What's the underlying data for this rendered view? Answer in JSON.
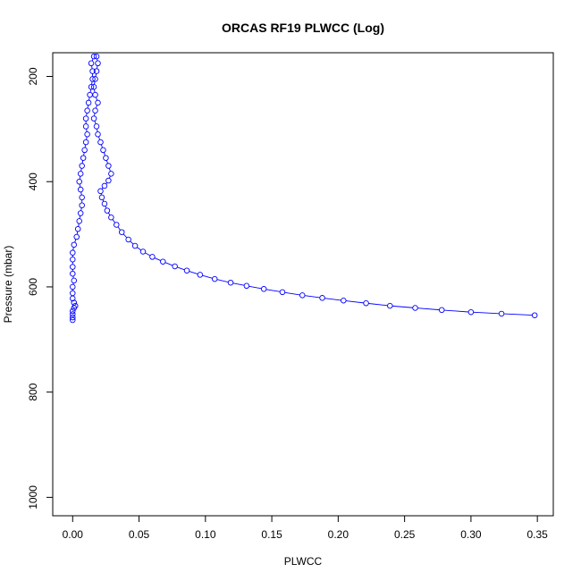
{
  "chart_data": {
    "type": "scatter",
    "title": "ORCAS RF19 PLWCC (Log)",
    "xlabel": "PLWCC",
    "ylabel": "Pressure (mbar)",
    "xlim": [
      -0.015,
      0.362
    ],
    "ylim": [
      1035,
      155
    ],
    "y_reversed": true,
    "x_ticks": [
      "0.00",
      "0.05",
      "0.10",
      "0.15",
      "0.20",
      "0.25",
      "0.30",
      "0.35"
    ],
    "y_ticks": [
      "200",
      "400",
      "600",
      "800",
      "1000"
    ],
    "grid": false,
    "legend": "none",
    "marker": "open-circle",
    "line": true,
    "colors": {
      "series": "#0000ff",
      "axis": "#000000"
    },
    "series": [
      {
        "values": [
          {
            "x": 0.0,
            "y": 663
          },
          {
            "x": 0.0,
            "y": 658
          },
          {
            "x": 0.0,
            "y": 652
          },
          {
            "x": 0.0,
            "y": 646
          },
          {
            "x": 0.001,
            "y": 640
          },
          {
            "x": 0.002,
            "y": 636
          },
          {
            "x": 0.001,
            "y": 630
          },
          {
            "x": 0.0,
            "y": 622
          },
          {
            "x": 0.0,
            "y": 612
          },
          {
            "x": 0.0,
            "y": 600
          },
          {
            "x": 0.001,
            "y": 588
          },
          {
            "x": 0.0,
            "y": 575
          },
          {
            "x": 0.0,
            "y": 562
          },
          {
            "x": 0.0,
            "y": 548
          },
          {
            "x": 0.0,
            "y": 535
          },
          {
            "x": 0.001,
            "y": 520
          },
          {
            "x": 0.003,
            "y": 505
          },
          {
            "x": 0.004,
            "y": 490
          },
          {
            "x": 0.005,
            "y": 475
          },
          {
            "x": 0.006,
            "y": 460
          },
          {
            "x": 0.007,
            "y": 445
          },
          {
            "x": 0.007,
            "y": 430
          },
          {
            "x": 0.006,
            "y": 415
          },
          {
            "x": 0.005,
            "y": 400
          },
          {
            "x": 0.006,
            "y": 385
          },
          {
            "x": 0.007,
            "y": 370
          },
          {
            "x": 0.008,
            "y": 355
          },
          {
            "x": 0.009,
            "y": 340
          },
          {
            "x": 0.01,
            "y": 325
          },
          {
            "x": 0.011,
            "y": 310
          },
          {
            "x": 0.01,
            "y": 295
          },
          {
            "x": 0.01,
            "y": 280
          },
          {
            "x": 0.011,
            "y": 265
          },
          {
            "x": 0.012,
            "y": 250
          },
          {
            "x": 0.013,
            "y": 235
          },
          {
            "x": 0.014,
            "y": 220
          },
          {
            "x": 0.015,
            "y": 205
          },
          {
            "x": 0.015,
            "y": 190
          },
          {
            "x": 0.014,
            "y": 175
          },
          {
            "x": 0.016,
            "y": 162
          },
          {
            "x": 0.018,
            "y": 162
          },
          {
            "x": 0.019,
            "y": 175
          },
          {
            "x": 0.018,
            "y": 190
          },
          {
            "x": 0.017,
            "y": 205
          },
          {
            "x": 0.016,
            "y": 220
          },
          {
            "x": 0.017,
            "y": 235
          },
          {
            "x": 0.019,
            "y": 250
          },
          {
            "x": 0.017,
            "y": 265
          },
          {
            "x": 0.016,
            "y": 280
          },
          {
            "x": 0.018,
            "y": 295
          },
          {
            "x": 0.019,
            "y": 310
          },
          {
            "x": 0.021,
            "y": 325
          },
          {
            "x": 0.023,
            "y": 340
          },
          {
            "x": 0.025,
            "y": 355
          },
          {
            "x": 0.027,
            "y": 370
          },
          {
            "x": 0.029,
            "y": 385
          },
          {
            "x": 0.027,
            "y": 398
          },
          {
            "x": 0.024,
            "y": 408
          },
          {
            "x": 0.021,
            "y": 418
          },
          {
            "x": 0.022,
            "y": 430
          },
          {
            "x": 0.024,
            "y": 442
          },
          {
            "x": 0.026,
            "y": 455
          },
          {
            "x": 0.029,
            "y": 468
          },
          {
            "x": 0.033,
            "y": 482
          },
          {
            "x": 0.037,
            "y": 496
          },
          {
            "x": 0.042,
            "y": 510
          },
          {
            "x": 0.047,
            "y": 522
          },
          {
            "x": 0.053,
            "y": 533
          },
          {
            "x": 0.06,
            "y": 543
          },
          {
            "x": 0.068,
            "y": 552
          },
          {
            "x": 0.077,
            "y": 561
          },
          {
            "x": 0.086,
            "y": 569
          },
          {
            "x": 0.096,
            "y": 577
          },
          {
            "x": 0.107,
            "y": 585
          },
          {
            "x": 0.119,
            "y": 592
          },
          {
            "x": 0.131,
            "y": 598
          },
          {
            "x": 0.144,
            "y": 604
          },
          {
            "x": 0.158,
            "y": 610
          },
          {
            "x": 0.173,
            "y": 616
          },
          {
            "x": 0.188,
            "y": 621
          },
          {
            "x": 0.204,
            "y": 626
          },
          {
            "x": 0.221,
            "y": 631
          },
          {
            "x": 0.239,
            "y": 636
          },
          {
            "x": 0.258,
            "y": 640
          },
          {
            "x": 0.278,
            "y": 644
          },
          {
            "x": 0.3,
            "y": 648
          },
          {
            "x": 0.323,
            "y": 651
          },
          {
            "x": 0.348,
            "y": 654
          }
        ]
      }
    ]
  }
}
